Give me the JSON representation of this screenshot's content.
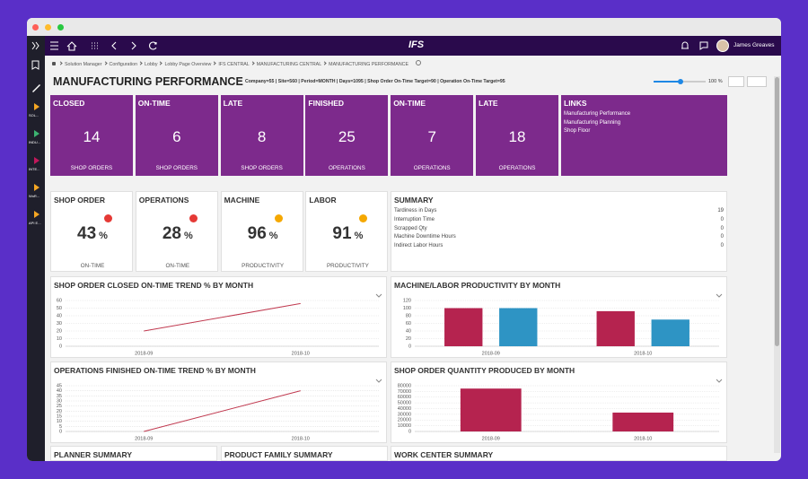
{
  "window": {
    "app_logo": "IFS",
    "user": "James Greaves"
  },
  "sidebar": [
    "SOL...",
    "INDU...",
    "INTE...",
    "WoR...",
    "API E..."
  ],
  "breadcrumb": [
    "Solution Manager",
    "Configuration",
    "Lobby",
    "Lobby Page Overview",
    "IFS CENTRAL",
    "MANUFACTURING CENTRAL",
    "MANUFACTURING PERFORMANCE"
  ],
  "page": {
    "title": "MANUFACTURING PERFORMANCE",
    "parameters": "Company=55 | Site=560 | Period=MONTH | Days=1095 | Shop Order On-Time Target=90 | Operation On-Time Target=95",
    "zoom": "100 %"
  },
  "count_tiles": [
    {
      "label": "CLOSED",
      "value": 14,
      "caption": "SHOP ORDERS"
    },
    {
      "label": "ON-TIME",
      "value": 6,
      "caption": "SHOP ORDERS"
    },
    {
      "label": "LATE",
      "value": 8,
      "caption": "SHOP ORDERS"
    },
    {
      "label": "FINISHED",
      "value": 25,
      "caption": "OPERATIONS"
    },
    {
      "label": "ON-TIME",
      "value": 7,
      "caption": "OPERATIONS"
    },
    {
      "label": "LATE",
      "value": 18,
      "caption": "OPERATIONS"
    }
  ],
  "links": {
    "title": "LINKS",
    "items": [
      "Manufacturing Performance",
      "Manufacturing Planning",
      "Shop Floor"
    ]
  },
  "kpi_tiles": [
    {
      "label": "SHOP ORDER",
      "value": 43,
      "unit": "%",
      "caption": "ON-TIME",
      "status_color": "#e53935"
    },
    {
      "label": "OPERATIONS",
      "value": 28,
      "unit": "%",
      "caption": "ON-TIME",
      "status_color": "#e53935"
    },
    {
      "label": "MACHINE",
      "value": 96,
      "unit": "%",
      "caption": "PRODUCTIVITY",
      "status_color": "#f5a800"
    },
    {
      "label": "LABOR",
      "value": 91,
      "unit": "%",
      "caption": "PRODUCTIVITY",
      "status_color": "#f5a800"
    }
  ],
  "summary": {
    "title": "SUMMARY",
    "rows": [
      {
        "label": "Tardiness in Days",
        "value": 19
      },
      {
        "label": "Interruption Time",
        "value": 0
      },
      {
        "label": "Scrapped Qty",
        "value": 0
      },
      {
        "label": "Machine Downtime Hours",
        "value": 0
      },
      {
        "label": "Indirect Labor Hours",
        "value": 0
      }
    ]
  },
  "chart_data": [
    {
      "type": "line",
      "title": "SHOP ORDER CLOSED ON-TIME TREND % BY MONTH",
      "categories": [
        "2018-09",
        "2018-10"
      ],
      "series": [
        {
          "color": "#c0394f",
          "values": [
            20,
            56
          ]
        }
      ],
      "ylim": [
        0,
        60
      ],
      "yticks": [
        0,
        10,
        20,
        30,
        40,
        50,
        60
      ],
      "grid": true
    },
    {
      "type": "bar",
      "title": "MACHINE/LABOR PRODUCTIVITY BY MONTH",
      "categories": [
        "2018-09",
        "2018-10"
      ],
      "series": [
        {
          "color": "#b5234f",
          "values": [
            100,
            92
          ]
        },
        {
          "color": "#2e94c4",
          "values": [
            100,
            70
          ]
        }
      ],
      "ylim": [
        0,
        120
      ],
      "yticks": [
        0,
        20,
        40,
        60,
        80,
        100,
        120
      ],
      "grid": true
    },
    {
      "type": "line",
      "title": "OPERATIONS FINISHED ON-TIME TREND % BY MONTH",
      "categories": [
        "2018-09",
        "2018-10"
      ],
      "series": [
        {
          "color": "#c0394f",
          "values": [
            0,
            40
          ]
        }
      ],
      "ylim": [
        0,
        45
      ],
      "yticks": [
        0,
        5,
        10,
        15,
        20,
        25,
        30,
        35,
        40,
        45
      ],
      "grid": true
    },
    {
      "type": "bar",
      "title": "SHOP ORDER QUANTITY PRODUCED BY MONTH",
      "categories": [
        "2018-09",
        "2018-10"
      ],
      "series": [
        {
          "color": "#b5234f",
          "values": [
            75000,
            33000
          ]
        }
      ],
      "ylim": [
        0,
        80000
      ],
      "yticks": [
        0,
        10000,
        20000,
        30000,
        40000,
        50000,
        60000,
        70000,
        80000
      ],
      "grid": true
    }
  ],
  "bottom_panels": [
    "PLANNER SUMMARY",
    "PRODUCT FAMILY SUMMARY",
    "WORK CENTER SUMMARY"
  ]
}
